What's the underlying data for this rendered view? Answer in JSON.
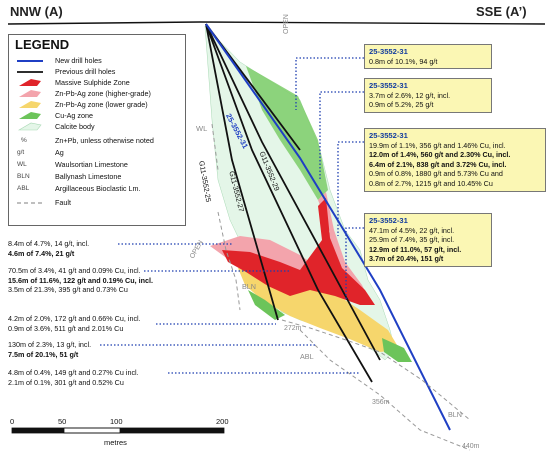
{
  "section": {
    "left_label": "NNW (A)",
    "right_label": "SSE (A’)"
  },
  "legend": {
    "title": "LEGEND",
    "items": [
      {
        "label": "New drill holes",
        "symbol": "blue-line-icon"
      },
      {
        "label": "Previous drill holes",
        "symbol": "black-line-icon"
      },
      {
        "label": "Massive Sulphide Zone",
        "symbol": "red-zone-swatch"
      },
      {
        "label": "Zn-Pb-Ag zone (higher-grade)",
        "symbol": "pink-zone-swatch"
      },
      {
        "label": "Zn-Pb-Ag zone (lower grade)",
        "symbol": "yellow-zone-swatch"
      },
      {
        "label": "Cu-Ag zone",
        "symbol": "green-zone-swatch"
      },
      {
        "label": "Calcite body",
        "symbol": "calcite-swatch"
      },
      {
        "label": "Zn+Pb, unless otherwise noted",
        "abbr": "%"
      },
      {
        "label": "Ag",
        "abbr": "g/t"
      },
      {
        "label": "Waulsortian Limestone",
        "abbr": "WL"
      },
      {
        "label": "Ballynash Limestone",
        "abbr": "BLN"
      },
      {
        "label": "Argillaceous Bioclastic Lm.",
        "abbr": "ABL"
      },
      {
        "label": "Fault",
        "symbol": "dashed-line-icon"
      }
    ],
    "colors": {
      "new_hole": "#1f3fc4",
      "previous_hole": "#111111",
      "massive_sulphide": "#e0242a",
      "zn_high": "#f2a0a8",
      "zn_low": "#f7dc7a",
      "cu_ag": "#6cc45a",
      "calcite": "#e4f6e8"
    }
  },
  "hole_labels": {
    "new_hole": "25-3552-31",
    "g11_25": "G11-3552-25",
    "g11_27": "G11-3552-27",
    "g11_29": "G11-3552-29"
  },
  "geology_labels": {
    "wl": "WL",
    "open_top": "OPEN",
    "open_mid": "OPEN",
    "bln_left": "BLN",
    "abl": "ABL",
    "bln_right": "BLN",
    "depth_272": "272m",
    "depth_356": "356m",
    "depth_440": "440m"
  },
  "boxes": [
    {
      "title": "25-3552-31",
      "lines": [
        {
          "t": "0.8m of 10.1%, 94 g/t",
          "b": false
        }
      ]
    },
    {
      "title": "25-3552-31",
      "lines": [
        {
          "t": "3.7m of 2.6%, 12 g/t, incl.",
          "b": false
        },
        {
          "t": "0.9m of 5.2%, 25 g/t",
          "b": false
        }
      ]
    },
    {
      "title": "25-3552-31",
      "lines": [
        {
          "t": "19.9m of 1.1%, 356 g/t and 1.46% Cu, incl.",
          "b": false
        },
        {
          "t": "12.0m of 1.4%, 560 g/t and 2.30% Cu, incl.",
          "b": true
        },
        {
          "t": "6.4m of 2.1%, 838 g/t and 3.72% Cu, incl.",
          "b": true
        },
        {
          "t": "0.9m of 0.8%, 1880 g/t and 5.73% Cu and",
          "b": false
        },
        {
          "t": "0.8m of 2.7%, 1215 g/t and 10.45% Cu",
          "b": false
        }
      ]
    },
    {
      "title": "25-3552-31",
      "lines": [
        {
          "t": "47.1m of 4.5%, 22 g/t, incl.",
          "b": false
        },
        {
          "t": "25.9m of 7.4%, 35 g/t, incl.",
          "b": false
        },
        {
          "t": "12.9m of 11.0%, 57 g/t, incl.",
          "b": true
        },
        {
          "t": "3.7m of 20.4%, 151 g/t",
          "b": true
        }
      ]
    }
  ],
  "left_intercepts": [
    {
      "lines": [
        {
          "t": "8.4m of 4.7%, 14 g/t, incl.",
          "b": false
        },
        {
          "t": "4.6m of 7.4%, 21 g/t",
          "b": true
        }
      ]
    },
    {
      "lines": [
        {
          "t": "70.5m of 3.4%, 41 g/t and 0.09% Cu, incl.",
          "b": false
        },
        {
          "t": "15.6m of 11.6%, 122 g/t and 0.19% Cu, incl.",
          "b": true
        },
        {
          "t": "3.5m of 21.3%, 395 g/t and 0.73% Cu",
          "b": false
        }
      ]
    },
    {
      "lines": [
        {
          "t": "4.2m of 2.0%, 172 g/t and 0.66% Cu, incl.",
          "b": false
        },
        {
          "t": "0.9m of 3.6%, 511 g/t and 2.01% Cu",
          "b": false
        }
      ]
    },
    {
      "lines": [
        {
          "t": "130m of 2.3%, 13 g/t, incl.",
          "b": false
        },
        {
          "t": "7.5m of 20.1%, 51 g/t",
          "b": true
        }
      ]
    },
    {
      "lines": [
        {
          "t": "4.8m of 0.4%, 149 g/t and 0.27% Cu incl.",
          "b": false
        },
        {
          "t": "2.1m of 0.1%, 301 g/t and 0.52% Cu",
          "b": false
        }
      ]
    }
  ],
  "scale": {
    "ticks": [
      "0",
      "50",
      "100",
      "200"
    ],
    "unit": "metres"
  }
}
